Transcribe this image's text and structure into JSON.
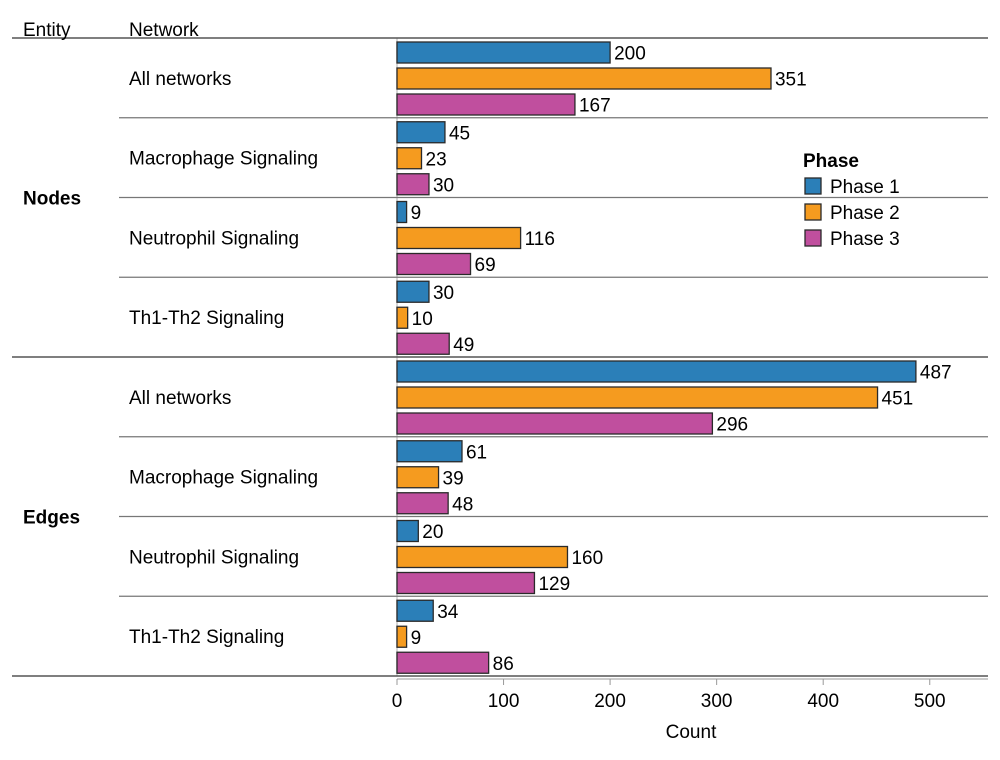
{
  "colors": {
    "Phase 1": "#2b7fb8",
    "Phase 2": "#f59b1f",
    "Phase 3": "#c04f9e"
  },
  "chart_data": {
    "type": "bar",
    "orientation": "horizontal",
    "xlabel": "Count",
    "xlim": [
      0,
      550
    ],
    "xticks": [
      0,
      100,
      200,
      300,
      400,
      500
    ],
    "column_headers": [
      "Entity",
      "Network"
    ],
    "legend": {
      "title": "Phase",
      "position": "right",
      "entries": [
        "Phase 1",
        "Phase 2",
        "Phase 3"
      ]
    },
    "groups": [
      {
        "entity": "Nodes",
        "rows": [
          {
            "network": "All networks",
            "values": [
              200,
              351,
              167
            ]
          },
          {
            "network": "Macrophage Signaling",
            "values": [
              45,
              23,
              30
            ]
          },
          {
            "network": "Neutrophil Signaling",
            "values": [
              9,
              116,
              69
            ]
          },
          {
            "network": "Th1-Th2 Signaling",
            "values": [
              30,
              10,
              49
            ]
          }
        ]
      },
      {
        "entity": "Edges",
        "rows": [
          {
            "network": "All networks",
            "values": [
              487,
              451,
              296
            ]
          },
          {
            "network": "Macrophage Signaling",
            "values": [
              61,
              39,
              48
            ]
          },
          {
            "network": "Neutrophil Signaling",
            "values": [
              20,
              160,
              129
            ]
          },
          {
            "network": "Th1-Th2 Signaling",
            "values": [
              34,
              9,
              86
            ]
          }
        ]
      }
    ]
  }
}
